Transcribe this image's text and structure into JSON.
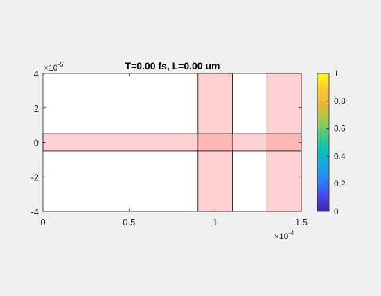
{
  "chart_data": {
    "type": "heatmap",
    "title": "T=0.00 fs, L=0.00 um",
    "xlim": [
      0,
      0.00015
    ],
    "ylim": [
      -4e-05,
      4e-05
    ],
    "x_ticks": [
      0,
      5e-05,
      0.0001,
      0.00015
    ],
    "x_tick_labels": [
      "0",
      "0.5",
      "1",
      "1.5"
    ],
    "x_exponent": "×10^-4",
    "x_exponent_base": "×10",
    "x_exponent_power": "-4",
    "y_ticks": [
      -4e-05,
      -2e-05,
      0,
      2e-05,
      4e-05
    ],
    "y_tick_labels": [
      "-4",
      "-2",
      "0",
      "2",
      "4"
    ],
    "y_exponent": "×10^-5",
    "y_exponent_base": "×10",
    "y_exponent_power": "-5",
    "regions": [
      {
        "x0": 9e-05,
        "x1": 0.00011,
        "y0": -4e-05,
        "y1": 4e-05
      },
      {
        "x0": 0.00013,
        "x1": 0.00015,
        "y0": -4e-05,
        "y1": 4e-05
      },
      {
        "x0": 0,
        "x1": 0.00015,
        "y0": -5e-06,
        "y1": 5e-06
      }
    ],
    "region_color": "#ff9999",
    "region_opacity": 0.45,
    "colorbar": {
      "limits": [
        0,
        1
      ],
      "ticks": [
        0,
        0.2,
        0.4,
        0.6,
        0.8,
        1
      ],
      "tick_labels": [
        "0",
        "0.2",
        "0.4",
        "0.6",
        "0.8",
        "1"
      ],
      "colormap": "parula",
      "colors": [
        "#3e26a8",
        "#4746eb",
        "#2c81f8",
        "#1aa6dc",
        "#0dbfb3",
        "#4acb82",
        "#a5c84c",
        "#e6b739",
        "#fcc93a",
        "#f9fb15"
      ]
    },
    "grid": false,
    "legend": "none"
  }
}
